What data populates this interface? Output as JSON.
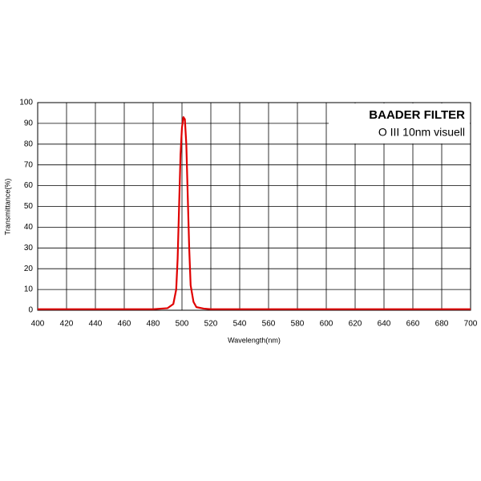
{
  "chart_data": {
    "type": "line",
    "title": "BAADER FILTER",
    "subtitle": "O III 10nm visuell",
    "x_label": "Wavelength(nm)",
    "y_label": "Transmittance(%)",
    "x": [
      400,
      480,
      490,
      494,
      496,
      497,
      498,
      499,
      500,
      501,
      502,
      503,
      504,
      505,
      506,
      508,
      510,
      515,
      520,
      600,
      700
    ],
    "values": [
      0.5,
      0.5,
      1,
      3,
      10,
      25,
      50,
      75,
      88,
      93,
      92,
      80,
      55,
      30,
      12,
      4,
      1.5,
      0.8,
      0.5,
      0.5,
      0.5
    ],
    "color": "#e00000",
    "xlim": [
      400,
      700
    ],
    "xticks": [
      400,
      420,
      440,
      460,
      480,
      500,
      520,
      540,
      560,
      580,
      600,
      620,
      640,
      660,
      680,
      700
    ],
    "ylim": [
      0,
      100
    ],
    "yticks": [
      0,
      10,
      20,
      30,
      40,
      50,
      60,
      70,
      80,
      90,
      100
    ],
    "grid": true
  }
}
